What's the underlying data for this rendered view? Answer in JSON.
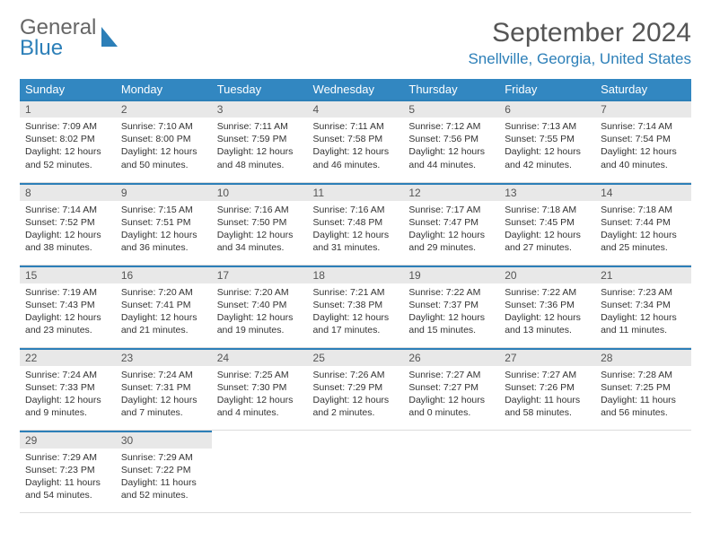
{
  "logo": {
    "line1": "General",
    "line2": "Blue"
  },
  "title": "September 2024",
  "location": "Snellville, Georgia, United States",
  "colors": {
    "header_bg": "#3287c1",
    "header_text": "#ffffff",
    "daynum_bg": "#e8e8e8",
    "daynum_border": "#2c7fb8",
    "accent": "#2c7fb8",
    "body_text": "#333333",
    "title_text": "#555555",
    "page_bg": "#ffffff"
  },
  "day_names": [
    "Sunday",
    "Monday",
    "Tuesday",
    "Wednesday",
    "Thursday",
    "Friday",
    "Saturday"
  ],
  "weeks": [
    [
      {
        "n": "1",
        "sr": "7:09 AM",
        "ss": "8:02 PM",
        "dl": "12 hours and 52 minutes."
      },
      {
        "n": "2",
        "sr": "7:10 AM",
        "ss": "8:00 PM",
        "dl": "12 hours and 50 minutes."
      },
      {
        "n": "3",
        "sr": "7:11 AM",
        "ss": "7:59 PM",
        "dl": "12 hours and 48 minutes."
      },
      {
        "n": "4",
        "sr": "7:11 AM",
        "ss": "7:58 PM",
        "dl": "12 hours and 46 minutes."
      },
      {
        "n": "5",
        "sr": "7:12 AM",
        "ss": "7:56 PM",
        "dl": "12 hours and 44 minutes."
      },
      {
        "n": "6",
        "sr": "7:13 AM",
        "ss": "7:55 PM",
        "dl": "12 hours and 42 minutes."
      },
      {
        "n": "7",
        "sr": "7:14 AM",
        "ss": "7:54 PM",
        "dl": "12 hours and 40 minutes."
      }
    ],
    [
      {
        "n": "8",
        "sr": "7:14 AM",
        "ss": "7:52 PM",
        "dl": "12 hours and 38 minutes."
      },
      {
        "n": "9",
        "sr": "7:15 AM",
        "ss": "7:51 PM",
        "dl": "12 hours and 36 minutes."
      },
      {
        "n": "10",
        "sr": "7:16 AM",
        "ss": "7:50 PM",
        "dl": "12 hours and 34 minutes."
      },
      {
        "n": "11",
        "sr": "7:16 AM",
        "ss": "7:48 PM",
        "dl": "12 hours and 31 minutes."
      },
      {
        "n": "12",
        "sr": "7:17 AM",
        "ss": "7:47 PM",
        "dl": "12 hours and 29 minutes."
      },
      {
        "n": "13",
        "sr": "7:18 AM",
        "ss": "7:45 PM",
        "dl": "12 hours and 27 minutes."
      },
      {
        "n": "14",
        "sr": "7:18 AM",
        "ss": "7:44 PM",
        "dl": "12 hours and 25 minutes."
      }
    ],
    [
      {
        "n": "15",
        "sr": "7:19 AM",
        "ss": "7:43 PM",
        "dl": "12 hours and 23 minutes."
      },
      {
        "n": "16",
        "sr": "7:20 AM",
        "ss": "7:41 PM",
        "dl": "12 hours and 21 minutes."
      },
      {
        "n": "17",
        "sr": "7:20 AM",
        "ss": "7:40 PM",
        "dl": "12 hours and 19 minutes."
      },
      {
        "n": "18",
        "sr": "7:21 AM",
        "ss": "7:38 PM",
        "dl": "12 hours and 17 minutes."
      },
      {
        "n": "19",
        "sr": "7:22 AM",
        "ss": "7:37 PM",
        "dl": "12 hours and 15 minutes."
      },
      {
        "n": "20",
        "sr": "7:22 AM",
        "ss": "7:36 PM",
        "dl": "12 hours and 13 minutes."
      },
      {
        "n": "21",
        "sr": "7:23 AM",
        "ss": "7:34 PM",
        "dl": "12 hours and 11 minutes."
      }
    ],
    [
      {
        "n": "22",
        "sr": "7:24 AM",
        "ss": "7:33 PM",
        "dl": "12 hours and 9 minutes."
      },
      {
        "n": "23",
        "sr": "7:24 AM",
        "ss": "7:31 PM",
        "dl": "12 hours and 7 minutes."
      },
      {
        "n": "24",
        "sr": "7:25 AM",
        "ss": "7:30 PM",
        "dl": "12 hours and 4 minutes."
      },
      {
        "n": "25",
        "sr": "7:26 AM",
        "ss": "7:29 PM",
        "dl": "12 hours and 2 minutes."
      },
      {
        "n": "26",
        "sr": "7:27 AM",
        "ss": "7:27 PM",
        "dl": "12 hours and 0 minutes."
      },
      {
        "n": "27",
        "sr": "7:27 AM",
        "ss": "7:26 PM",
        "dl": "11 hours and 58 minutes."
      },
      {
        "n": "28",
        "sr": "7:28 AM",
        "ss": "7:25 PM",
        "dl": "11 hours and 56 minutes."
      }
    ],
    [
      {
        "n": "29",
        "sr": "7:29 AM",
        "ss": "7:23 PM",
        "dl": "11 hours and 54 minutes."
      },
      {
        "n": "30",
        "sr": "7:29 AM",
        "ss": "7:22 PM",
        "dl": "11 hours and 52 minutes."
      },
      null,
      null,
      null,
      null,
      null
    ]
  ],
  "labels": {
    "sunrise": "Sunrise: ",
    "sunset": "Sunset: ",
    "daylight": "Daylight: "
  }
}
